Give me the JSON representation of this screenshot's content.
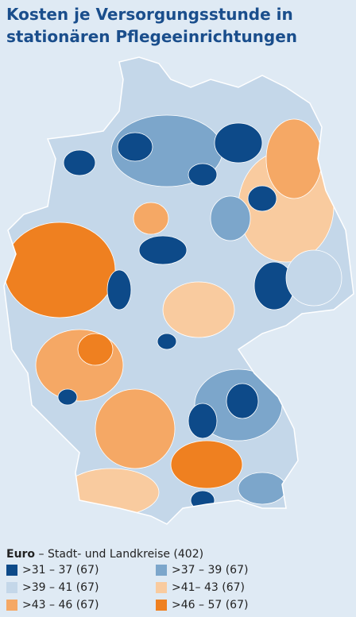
{
  "title": "Kosten je Versorgungsstunde in stationären Pflegeeinrichtungen",
  "legend": {
    "unit": "Euro",
    "subtitle": " – Stadt- und Landkreise (402)",
    "items": [
      {
        "label": ">31 – 37 (67)",
        "color": "#0d4a89"
      },
      {
        "label": ">37 – 39 (67)",
        "color": "#7ca6cb"
      },
      {
        "label": ">39 – 41 (67)",
        "color": "#c4d7e9"
      },
      {
        "label": ">41– 43 (67)",
        "color": "#f9cb9f"
      },
      {
        "label": ">43 – 46 (67)",
        "color": "#f5a865"
      },
      {
        "label": ">46 – 57 (67)",
        "color": "#ef8020"
      }
    ]
  }
}
